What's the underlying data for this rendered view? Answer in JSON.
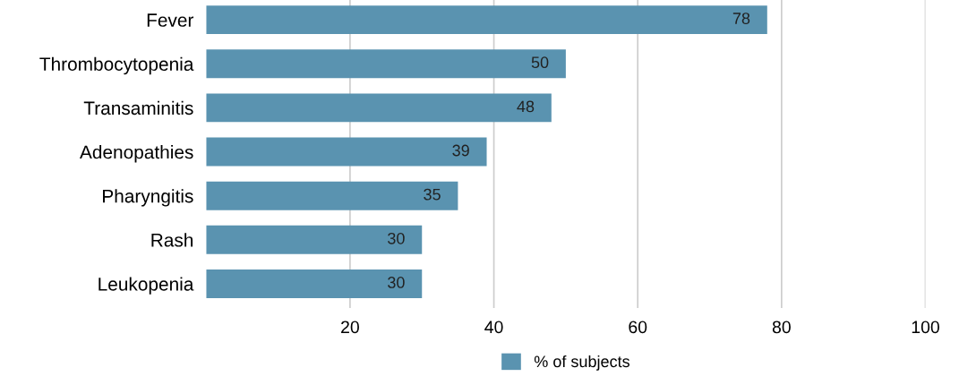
{
  "chart_data": {
    "type": "bar",
    "orientation": "horizontal",
    "categories": [
      "Fever",
      "Thrombocytopenia",
      "Transaminitis",
      "Adenopathies",
      "Pharyngitis",
      "Rash",
      "Leukopenia"
    ],
    "series": [
      {
        "name": "% of subjects",
        "color": "#5a93b0",
        "values": [
          78,
          50,
          48,
          39,
          35,
          30,
          30
        ]
      }
    ],
    "xlim": [
      0,
      100
    ],
    "xticks": [
      20,
      40,
      60,
      80,
      100
    ],
    "grid": "x",
    "legend": "bottom",
    "data_labels": true
  }
}
